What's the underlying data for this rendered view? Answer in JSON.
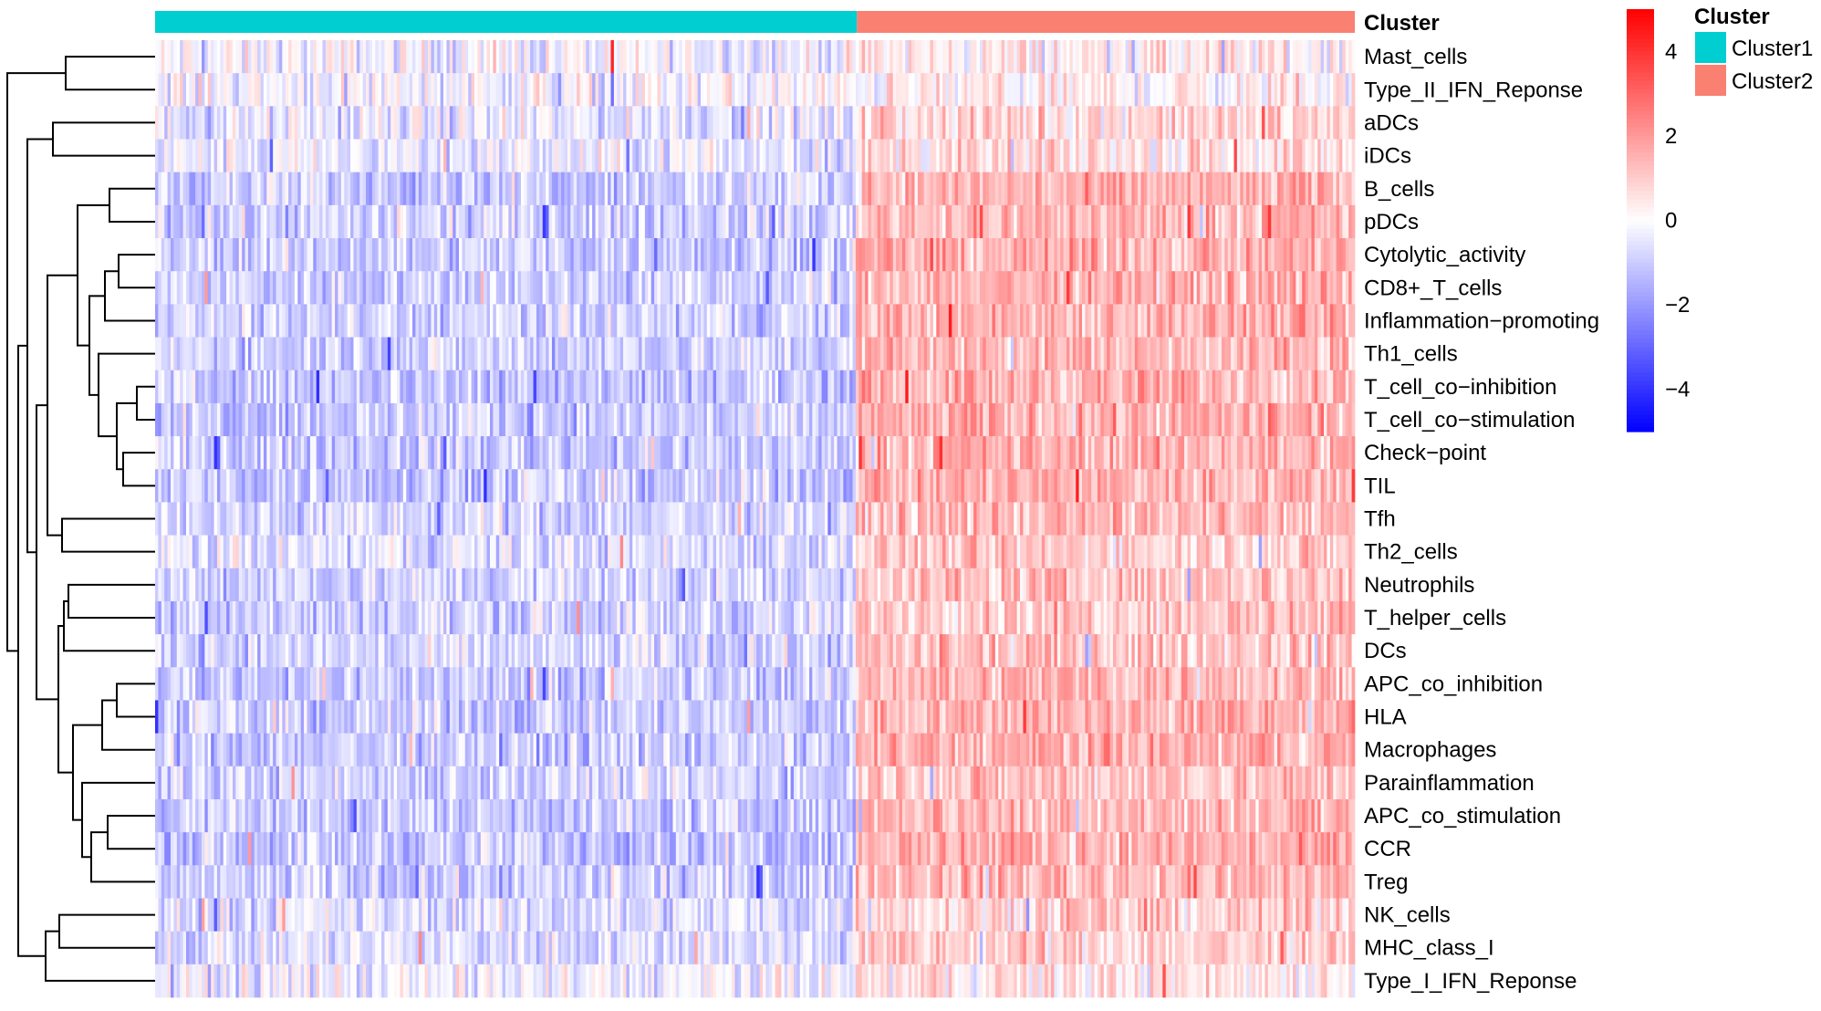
{
  "chart_data": {
    "type": "heatmap",
    "annotation_title": "Cluster",
    "legend_title": "Cluster",
    "clusters": [
      {
        "name": "Cluster1",
        "color": "#00CED1",
        "fraction": 0.585
      },
      {
        "name": "Cluster2",
        "color": "#FA8072",
        "fraction": 0.415
      }
    ],
    "rows": [
      {
        "label": "Mast_cells",
        "mean1": -0.2,
        "mean2": 0.3
      },
      {
        "label": "Type_II_IFN_Reponse",
        "mean1": -0.1,
        "mean2": 0.2
      },
      {
        "label": "aDCs",
        "mean1": -0.5,
        "mean2": 0.8
      },
      {
        "label": "iDCs",
        "mean1": -0.4,
        "mean2": 0.6
      },
      {
        "label": "B_cells",
        "mean1": -0.9,
        "mean2": 1.4
      },
      {
        "label": "pDCs",
        "mean1": -0.9,
        "mean2": 1.4
      },
      {
        "label": "Cytolytic_activity",
        "mean1": -0.9,
        "mean2": 1.5
      },
      {
        "label": "CD8+_T_cells",
        "mean1": -0.9,
        "mean2": 1.5
      },
      {
        "label": "Inflammation−promoting",
        "mean1": -0.9,
        "mean2": 1.5
      },
      {
        "label": "Th1_cells",
        "mean1": -0.8,
        "mean2": 1.4
      },
      {
        "label": "T_cell_co−inhibition",
        "mean1": -1.0,
        "mean2": 1.5
      },
      {
        "label": "T_cell_co−stimulation",
        "mean1": -1.0,
        "mean2": 1.5
      },
      {
        "label": "Check−point",
        "mean1": -1.0,
        "mean2": 1.5
      },
      {
        "label": "TIL",
        "mean1": -1.0,
        "mean2": 1.5
      },
      {
        "label": "Tfh",
        "mean1": -0.8,
        "mean2": 1.3
      },
      {
        "label": "Th2_cells",
        "mean1": -0.6,
        "mean2": 1.0
      },
      {
        "label": "Neutrophils",
        "mean1": -0.8,
        "mean2": 1.2
      },
      {
        "label": "T_helper_cells",
        "mean1": -0.8,
        "mean2": 1.2
      },
      {
        "label": "DCs",
        "mean1": -0.8,
        "mean2": 1.1
      },
      {
        "label": "APC_co_inhibition",
        "mean1": -1.0,
        "mean2": 1.5
      },
      {
        "label": "HLA",
        "mean1": -1.0,
        "mean2": 1.5
      },
      {
        "label": "Macrophages",
        "mean1": -1.0,
        "mean2": 1.5
      },
      {
        "label": "Parainflammation",
        "mean1": -0.8,
        "mean2": 1.2
      },
      {
        "label": "APC_co_stimulation",
        "mean1": -1.0,
        "mean2": 1.5
      },
      {
        "label": "CCR",
        "mean1": -1.0,
        "mean2": 1.5
      },
      {
        "label": "Treg",
        "mean1": -1.0,
        "mean2": 1.4
      },
      {
        "label": "NK_cells",
        "mean1": -0.6,
        "mean2": 0.9
      },
      {
        "label": "MHC_class_I",
        "mean1": -0.6,
        "mean2": 0.9
      },
      {
        "label": "Type_I_IFN_Reponse",
        "mean1": -0.3,
        "mean2": 0.5
      }
    ],
    "color_scale": {
      "min": -5,
      "max": 5,
      "low_color": "#0000FF",
      "mid_color": "#FFFFFF",
      "high_color": "#FF0000",
      "ticks": [
        4,
        2,
        0,
        -2,
        -4
      ],
      "tick_labels": [
        "4",
        "2",
        "0",
        "−2",
        "−4"
      ]
    },
    "dendrogram": "hierarchical clustering tree on the left, ordering the rows"
  }
}
